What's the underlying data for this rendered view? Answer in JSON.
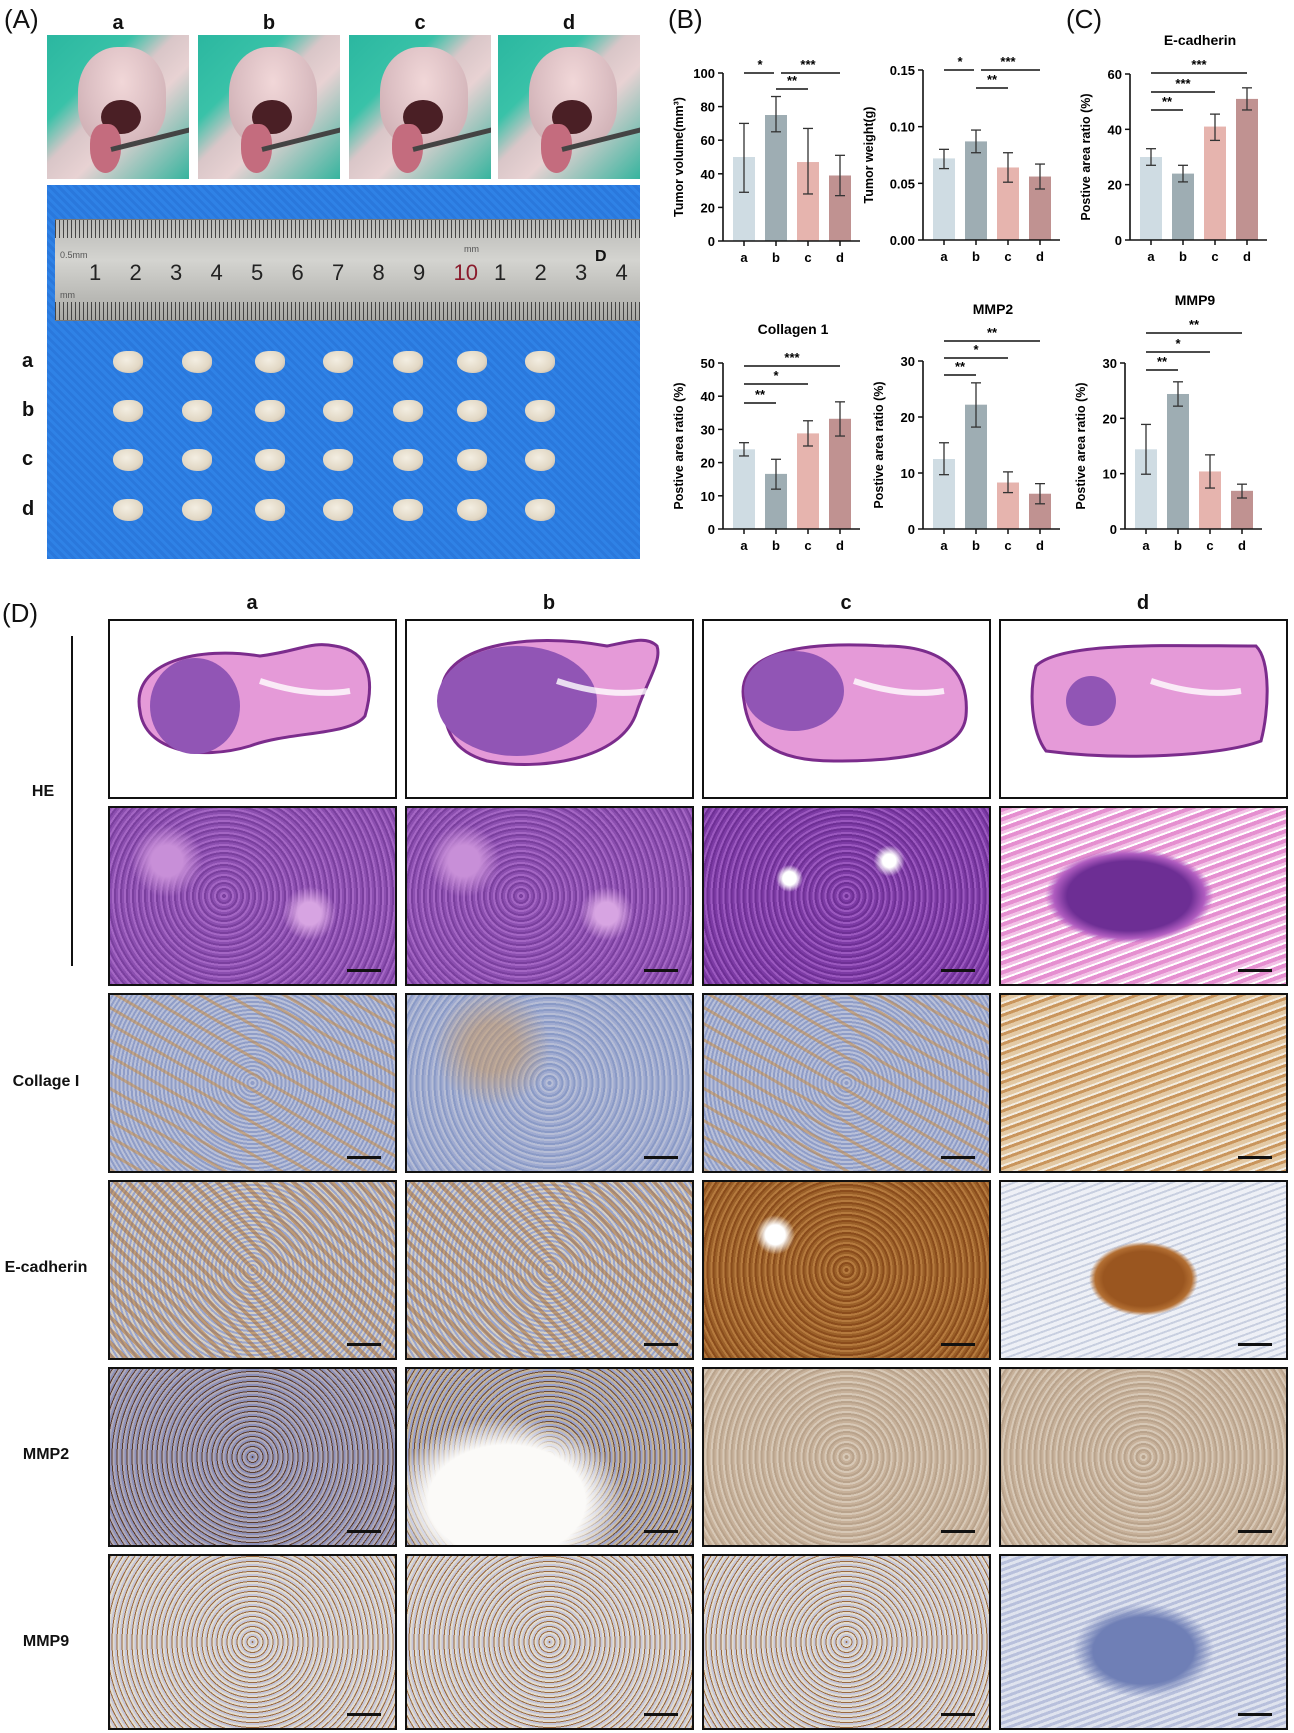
{
  "panels": {
    "A": "(A)",
    "B": "(B)",
    "C": "(C)",
    "D": "(D)"
  },
  "groups": [
    "a",
    "b",
    "c",
    "d"
  ],
  "ruler": {
    "numbers": [
      "1",
      "2",
      "3",
      "4",
      "5",
      "6",
      "7",
      "8",
      "9",
      "10",
      "1",
      "2",
      "3",
      "4"
    ],
    "letter": "D",
    "unit_top": "0.5mm",
    "unit_bottom": "mm",
    "unit_mid": "mm"
  },
  "bar_colors": {
    "a": "#cfdce3",
    "b": "#9eadb3",
    "c": "#e6b4ae",
    "d": "#c09291"
  },
  "histology": {
    "rows": [
      "HE",
      "",
      "Collage I",
      "E-cadherin",
      "MMP2",
      "MMP9"
    ]
  },
  "chart_data": [
    {
      "type": "bar",
      "title": "",
      "ylabel": "Tumor volume(mm³)",
      "categories": [
        "a",
        "b",
        "c",
        "d"
      ],
      "values": [
        50,
        75,
        47,
        39
      ],
      "error_low": [
        29,
        65,
        28,
        27
      ],
      "error_high": [
        70,
        86,
        67,
        51
      ],
      "ylim": [
        0,
        100
      ],
      "yticks": [
        "0",
        "20",
        "40",
        "60",
        "80",
        "100"
      ],
      "comparisons": [
        [
          "a",
          "b",
          "*"
        ],
        [
          "b",
          "d",
          "***"
        ],
        [
          "b",
          "c",
          "**"
        ]
      ]
    },
    {
      "type": "bar",
      "title": "",
      "ylabel": "Tumor weight(g)",
      "categories": [
        "a",
        "b",
        "c",
        "d"
      ],
      "values": [
        0.072,
        0.087,
        0.064,
        0.056
      ],
      "error_low": [
        0.063,
        0.077,
        0.051,
        0.045
      ],
      "error_high": [
        0.08,
        0.097,
        0.077,
        0.067
      ],
      "ylim": [
        0,
        0.15
      ],
      "yticks": [
        "0.00",
        "0.05",
        "0.10",
        "0.15"
      ],
      "comparisons": [
        [
          "a",
          "b",
          "*"
        ],
        [
          "b",
          "d",
          "***"
        ],
        [
          "b",
          "c",
          "**"
        ]
      ]
    },
    {
      "type": "bar",
      "title": "E-cadherin",
      "ylabel": "Postive area ratio (%)",
      "categories": [
        "a",
        "b",
        "c",
        "d"
      ],
      "values": [
        30,
        24,
        41,
        51
      ],
      "error_low": [
        27,
        21,
        36,
        47
      ],
      "error_high": [
        33,
        27,
        45.5,
        55
      ],
      "ylim": [
        0,
        60
      ],
      "yticks": [
        "0",
        "20",
        "40",
        "60"
      ],
      "comparisons": [
        [
          "a",
          "d",
          "***"
        ],
        [
          "a",
          "c",
          "***"
        ],
        [
          "a",
          "b",
          "**"
        ]
      ]
    },
    {
      "type": "bar",
      "title": "Collagen 1",
      "ylabel": "Postive area ratio (%)",
      "categories": [
        "a",
        "b",
        "c",
        "d"
      ],
      "values": [
        24,
        16.6,
        28.8,
        33.2
      ],
      "error_low": [
        22,
        12,
        25,
        28
      ],
      "error_high": [
        26,
        21,
        32.6,
        38.3
      ],
      "ylim": [
        0,
        50
      ],
      "yticks": [
        "0",
        "10",
        "20",
        "30",
        "40",
        "50"
      ],
      "comparisons": [
        [
          "a",
          "d",
          "***"
        ],
        [
          "a",
          "c",
          "*"
        ],
        [
          "a",
          "b",
          "**"
        ]
      ]
    },
    {
      "type": "bar",
      "title": "MMP2",
      "ylabel": "Postive area ratio (%)",
      "categories": [
        "a",
        "b",
        "c",
        "d"
      ],
      "values": [
        12.5,
        22.2,
        8.3,
        6.3
      ],
      "error_low": [
        9.7,
        18.2,
        6.5,
        4.5
      ],
      "error_high": [
        15.4,
        26.1,
        10.2,
        8.1
      ],
      "ylim": [
        0,
        30
      ],
      "yticks": [
        "0",
        "10",
        "20",
        "30"
      ],
      "comparisons": [
        [
          "a",
          "d",
          "**"
        ],
        [
          "a",
          "c",
          "*"
        ],
        [
          "a",
          "b",
          "**"
        ]
      ]
    },
    {
      "type": "bar",
      "title": "MMP9",
      "ylabel": "Postive area ratio (%)",
      "categories": [
        "a",
        "b",
        "c",
        "d"
      ],
      "values": [
        14.4,
        24.4,
        10.4,
        6.9
      ],
      "error_low": [
        9.9,
        22.2,
        7.4,
        5.6
      ],
      "error_high": [
        18.9,
        26.6,
        13.4,
        8.1
      ],
      "ylim": [
        0,
        30
      ],
      "yticks": [
        "0",
        "10",
        "20",
        "30"
      ],
      "comparisons": [
        [
          "a",
          "d",
          "**"
        ],
        [
          "a",
          "c",
          "*"
        ],
        [
          "a",
          "b",
          "**"
        ]
      ]
    }
  ]
}
